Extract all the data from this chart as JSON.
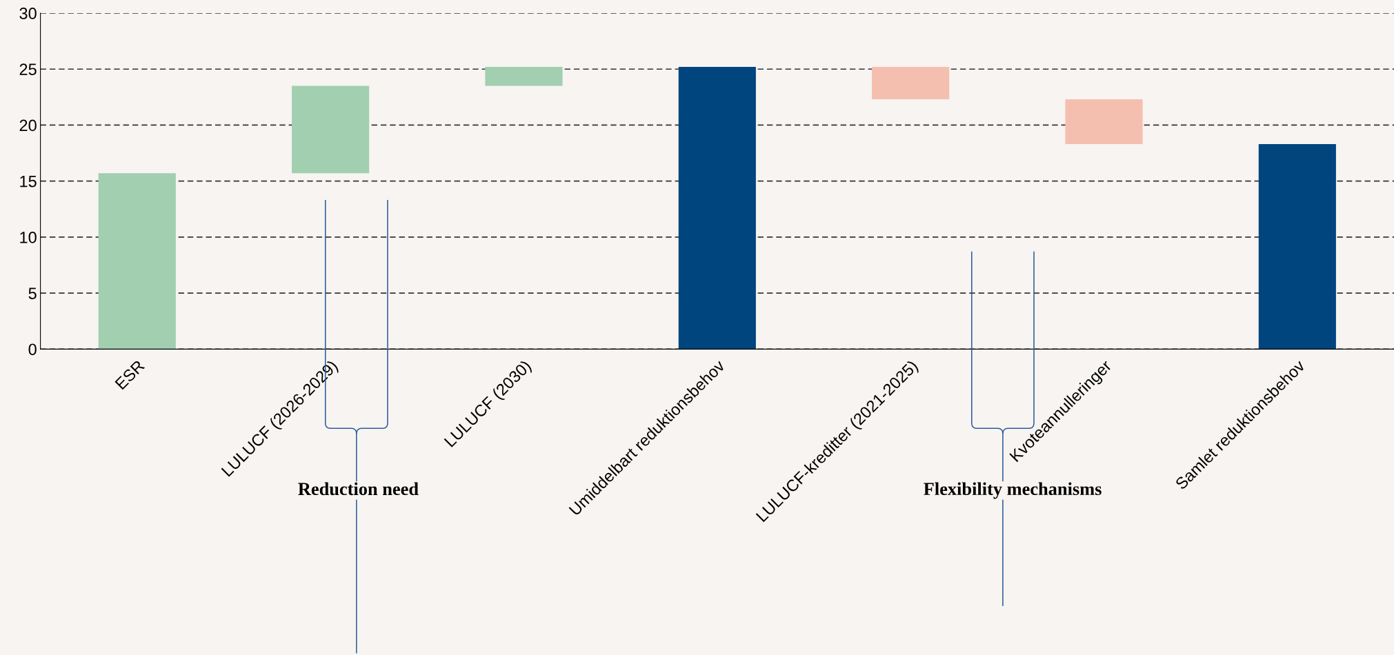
{
  "chart_data": {
    "type": "bar",
    "categories": [
      "ESR",
      "LULUCF (2026-2029)",
      "LULUCF (2030)",
      "Umiddelbart reduktionsbehov",
      "LULUCF-kreditter (2021-2025)",
      "Kvoteannulleringer",
      "Samlet reduktionsbehov"
    ],
    "values": [
      15.7,
      7.8,
      1.7,
      25.2,
      2.9,
      4.0,
      18.3
    ],
    "base": [
      0,
      15.7,
      23.5,
      0,
      22.3,
      18.3,
      0
    ],
    "colors": [
      "#a1cfb0",
      "#a1cfb0",
      "#a1cfb0",
      "#00457e",
      "#f5bfb0",
      "#f5bfb0",
      "#00457e"
    ],
    "ylim": [
      0,
      30
    ],
    "yticks": [
      0,
      5,
      10,
      15,
      20,
      25,
      30
    ],
    "grid": "y",
    "annotations": [
      "Reduction need",
      "Flexibility mechanisms"
    ]
  }
}
